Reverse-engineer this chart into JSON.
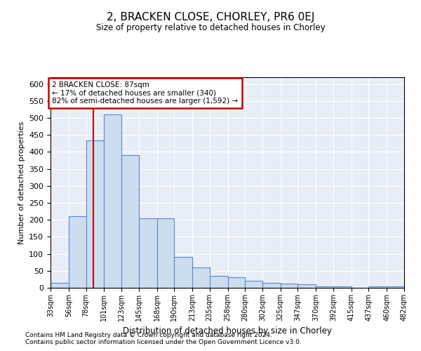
{
  "title": "2, BRACKEN CLOSE, CHORLEY, PR6 0EJ",
  "subtitle": "Size of property relative to detached houses in Chorley",
  "xlabel": "Distribution of detached houses by size in Chorley",
  "ylabel": "Number of detached properties",
  "footnote1": "Contains HM Land Registry data © Crown copyright and database right 2024.",
  "footnote2": "Contains public sector information licensed under the Open Government Licence v3.0.",
  "annotation_line1": "2 BRACKEN CLOSE: 87sqm",
  "annotation_line2": "← 17% of detached houses are smaller (340)",
  "annotation_line3": "82% of semi-detached houses are larger (1,592) →",
  "property_size": 87,
  "bin_edges": [
    33,
    56,
    78,
    101,
    123,
    145,
    168,
    190,
    213,
    235,
    258,
    280,
    302,
    325,
    347,
    370,
    392,
    415,
    437,
    460,
    482
  ],
  "bar_heights": [
    15,
    210,
    435,
    510,
    390,
    205,
    205,
    90,
    60,
    35,
    30,
    20,
    15,
    12,
    10,
    5,
    5,
    0,
    5,
    5
  ],
  "bar_color": "#ccddf0",
  "bar_edge_color": "#5588cc",
  "redline_color": "#cc0000",
  "bg_color": "#e8eef7",
  "annotation_box_edgecolor": "#cc0000",
  "ylim": [
    0,
    620
  ],
  "yticks": [
    0,
    50,
    100,
    150,
    200,
    250,
    300,
    350,
    400,
    450,
    500,
    550,
    600
  ]
}
